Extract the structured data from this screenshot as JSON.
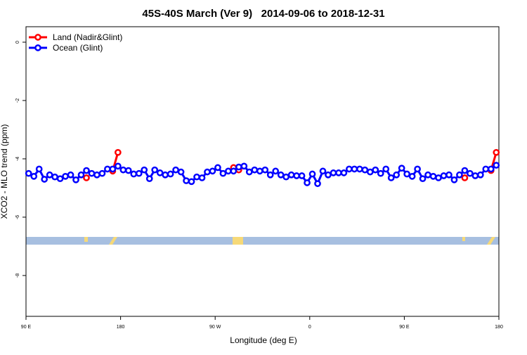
{
  "chart_data": {
    "type": "line",
    "title": "45S-40S March (Ver 9)   2014-09-06 to 2018-12-31",
    "x_label": "Longitude (deg E)",
    "y_label": "XCO2 - MLO trend (ppm)",
    "x": [
      92.5,
      97.5,
      102.5,
      107.5,
      112.5,
      117.5,
      122.5,
      127.5,
      132.5,
      137.5,
      142.5,
      147.5,
      152.5,
      157.5,
      162.5,
      167.5,
      172.5,
      177.5,
      182.5,
      187.5,
      192.5,
      197.5,
      202.5,
      207.5,
      212.5,
      217.5,
      222.5,
      227.5,
      232.5,
      237.5,
      242.5,
      247.5,
      252.5,
      257.5,
      262.5,
      267.5,
      272.5,
      277.5,
      282.5,
      287.5,
      292.5,
      297.5,
      302.5,
      307.5,
      312.5,
      317.5,
      322.5,
      327.5,
      332.5,
      337.5,
      342.5,
      347.5,
      352.5,
      357.5,
      362.5,
      367.5,
      372.5,
      377.5,
      382.5,
      387.5,
      392.5,
      397.5,
      402.5,
      407.5,
      412.5,
      417.5,
      422.5,
      427.5,
      432.5,
      437.5,
      442.5,
      447.5,
      452.5,
      457.5,
      462.5,
      467.5,
      472.5,
      477.5,
      482.5,
      487.5,
      492.5,
      497.5,
      502.5,
      507.5,
      512.5,
      517.5,
      522.5,
      527.5,
      532.5,
      537.5
    ],
    "series": [
      {
        "name": "Land (Nadir&Glint)",
        "color": "#ff0000",
        "values": [
          null,
          null,
          null,
          null,
          null,
          null,
          null,
          null,
          null,
          null,
          null,
          -4.65,
          null,
          null,
          null,
          null,
          -4.42,
          -3.78,
          null,
          null,
          null,
          null,
          null,
          null,
          null,
          null,
          null,
          null,
          null,
          null,
          null,
          null,
          null,
          null,
          null,
          null,
          null,
          null,
          null,
          -4.3,
          -4.38,
          null,
          null,
          null,
          null,
          null,
          null,
          null,
          null,
          null,
          null,
          null,
          null,
          null,
          null,
          null,
          null,
          null,
          null,
          null,
          null,
          null,
          null,
          null,
          null,
          null,
          null,
          null,
          null,
          null,
          null,
          null,
          null,
          null,
          null,
          null,
          null,
          null,
          null,
          null,
          null,
          null,
          null,
          -4.65,
          null,
          null,
          null,
          null,
          -4.4,
          -3.78
        ]
      },
      {
        "name": "Ocean (Glint)",
        "color": "#0000ff",
        "values": [
          -4.5,
          -4.6,
          -4.35,
          -4.7,
          -4.55,
          -4.62,
          -4.68,
          -4.6,
          -4.55,
          -4.72,
          -4.55,
          -4.4,
          -4.5,
          -4.55,
          -4.5,
          -4.35,
          -4.35,
          -4.25,
          -4.38,
          -4.4,
          -4.52,
          -4.5,
          -4.38,
          -4.68,
          -4.38,
          -4.48,
          -4.55,
          -4.52,
          -4.38,
          -4.45,
          -4.75,
          -4.78,
          -4.62,
          -4.65,
          -4.45,
          -4.42,
          -4.3,
          -4.5,
          -4.42,
          -4.42,
          -4.28,
          -4.25,
          -4.45,
          -4.38,
          -4.42,
          -4.38,
          -4.55,
          -4.42,
          -4.55,
          -4.62,
          -4.55,
          -4.58,
          -4.58,
          -4.82,
          -4.52,
          -4.85,
          -4.42,
          -4.55,
          -4.48,
          -4.48,
          -4.48,
          -4.35,
          -4.35,
          -4.35,
          -4.38,
          -4.45,
          -4.38,
          -4.5,
          -4.35,
          -4.65,
          -4.55,
          -4.32,
          -4.52,
          -4.6,
          -4.35,
          -4.68,
          -4.55,
          -4.6,
          -4.65,
          -4.58,
          -4.55,
          -4.72,
          -4.55,
          -4.4,
          -4.5,
          -4.58,
          -4.55,
          -4.35,
          -4.35,
          -4.22
        ]
      }
    ],
    "xlim": [
      90,
      540
    ],
    "xticks": [
      {
        "value": 90,
        "label": "90 E"
      },
      180,
      {
        "value": 270,
        "label": "90 W"
      },
      {
        "value": 360,
        "label": "0"
      },
      {
        "value": 450,
        "label": "90 E"
      },
      {
        "value": 540,
        "label": "180"
      }
    ],
    "ylim": [
      -9.4,
      0.53
    ],
    "yticks": [
      0,
      -2,
      -4,
      -6,
      -8
    ],
    "legend": "top-left"
  }
}
